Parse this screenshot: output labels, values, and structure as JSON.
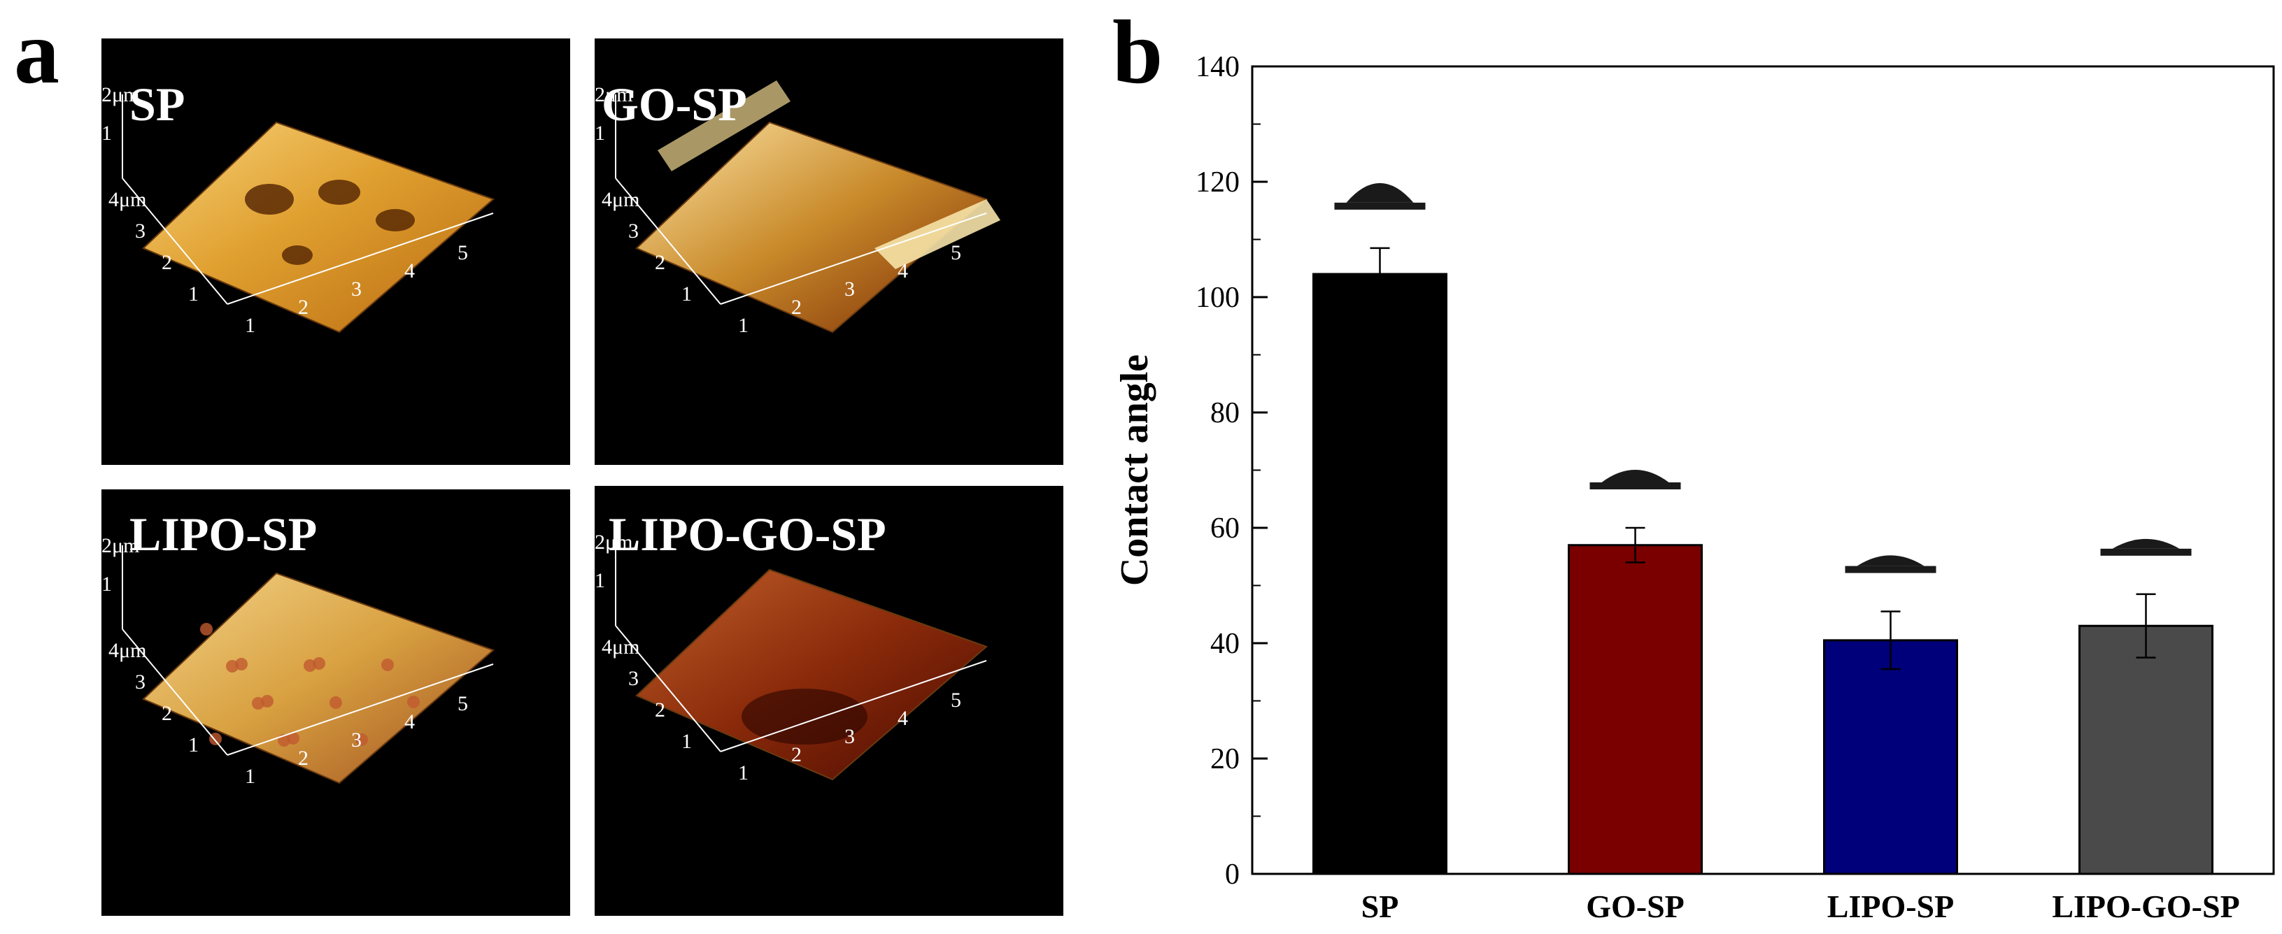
{
  "panel_a": {
    "letter": "a",
    "images": [
      {
        "label": "SP",
        "z_tick_max": "2μm",
        "z_tick_mid": "1",
        "y_ticks": [
          "4μm",
          "3",
          "2",
          "1"
        ],
        "x_ticks": [
          "1",
          "2",
          "3",
          "4",
          "5"
        ],
        "palette": "gold"
      },
      {
        "label": "GO-SP",
        "z_tick_max": "2μm",
        "z_tick_mid": "1",
        "y_ticks": [
          "4μm",
          "3",
          "2",
          "1"
        ],
        "x_ticks": [
          "1",
          "2",
          "3",
          "4",
          "5"
        ],
        "palette": "golddark"
      },
      {
        "label": "LIPO-SP",
        "z_tick_max": "2μm",
        "z_tick_mid": "1",
        "y_ticks": [
          "4μm",
          "3",
          "2",
          "1"
        ],
        "x_ticks": [
          "1",
          "2",
          "3",
          "4",
          "5"
        ],
        "palette": "rough"
      },
      {
        "label": "LIPO-GO-SP",
        "z_tick_max": "2μm",
        "z_tick_mid": "1",
        "y_ticks": [
          "4μm",
          "3",
          "2",
          "1"
        ],
        "x_ticks": [
          "1",
          "2",
          "3",
          "4",
          "5"
        ],
        "palette": "dark"
      }
    ]
  },
  "panel_b": {
    "letter": "b"
  },
  "chart_data": {
    "type": "bar",
    "categories": [
      "SP",
      "GO-SP",
      "LIPO-SP",
      "LIPO-GO-SP"
    ],
    "values": [
      104,
      57,
      40.5,
      43
    ],
    "errors": [
      4.5,
      3,
      5,
      5.5
    ],
    "colors": [
      "#000000",
      "#7a0000",
      "#00007a",
      "#4a4a4a"
    ],
    "droplet_heights": [
      0.7,
      0.45,
      0.38,
      0.35
    ],
    "ylabel": "Contact angle",
    "xlabel": "",
    "title": "",
    "ylim": [
      0,
      140
    ],
    "yticks": [
      0,
      20,
      40,
      60,
      80,
      100,
      120,
      140
    ],
    "grid": false
  }
}
